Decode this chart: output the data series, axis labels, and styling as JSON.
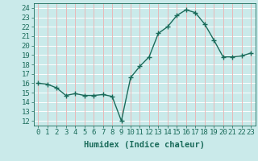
{
  "x": [
    0,
    1,
    2,
    3,
    4,
    5,
    6,
    7,
    8,
    9,
    10,
    11,
    12,
    13,
    14,
    15,
    16,
    17,
    18,
    19,
    20,
    21,
    22,
    23
  ],
  "y": [
    16.0,
    15.9,
    15.5,
    14.7,
    14.9,
    14.7,
    14.7,
    14.8,
    14.6,
    12.0,
    16.6,
    17.8,
    18.8,
    21.3,
    22.0,
    23.2,
    23.8,
    23.5,
    22.3,
    20.6,
    18.8,
    18.8,
    18.9,
    19.2
  ],
  "line_color": "#1a6b5a",
  "marker": "+",
  "bg_color": "#caeaea",
  "grid_color_h": "#ffffff",
  "grid_color_v": "#e8b8b8",
  "xlabel": "Humidex (Indice chaleur)",
  "ylabel_ticks": [
    12,
    13,
    14,
    15,
    16,
    17,
    18,
    19,
    20,
    21,
    22,
    23,
    24
  ],
  "xlim": [
    -0.5,
    23.5
  ],
  "ylim": [
    11.5,
    24.5
  ],
  "xlabel_fontsize": 7.5,
  "tick_fontsize": 6.5,
  "line_width": 1.0,
  "marker_size": 4,
  "marker_ew": 1.0
}
